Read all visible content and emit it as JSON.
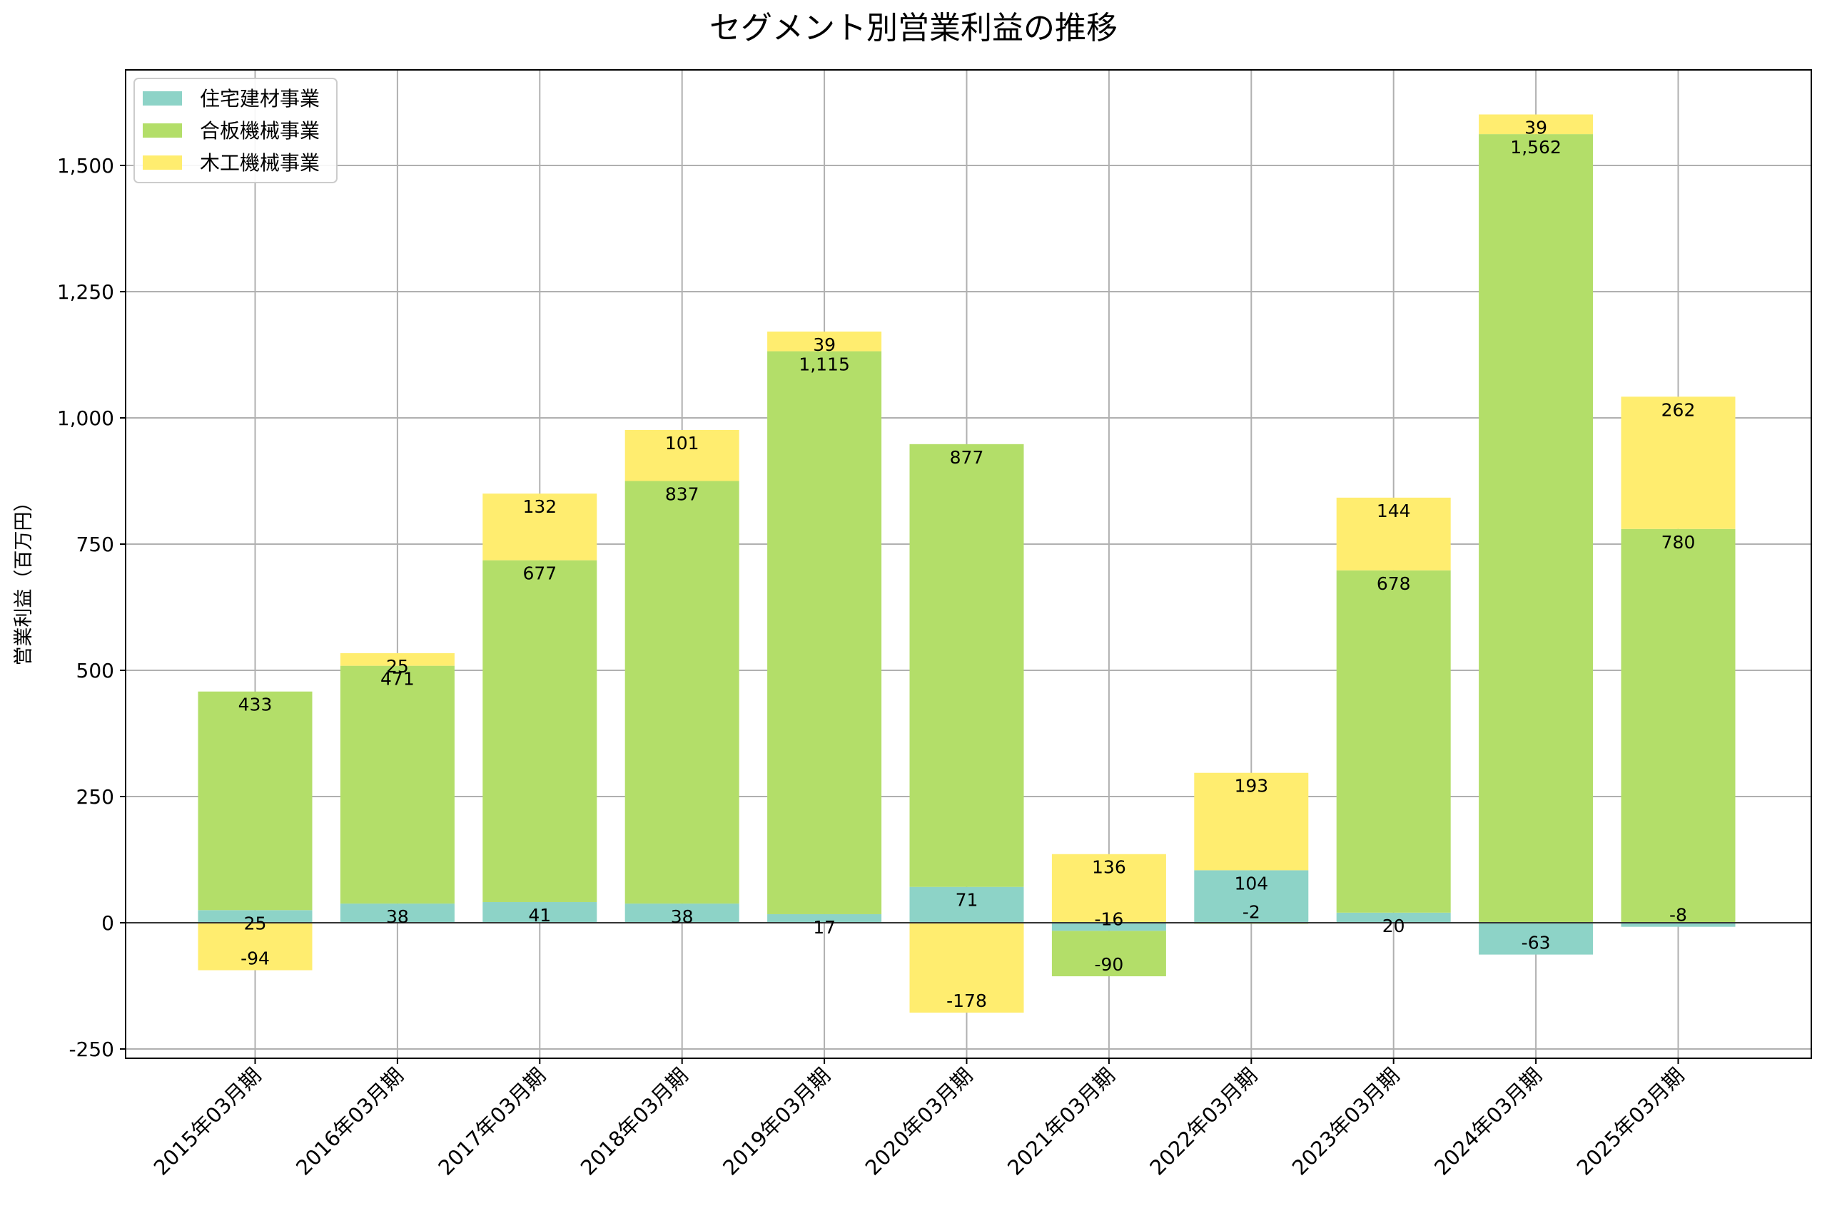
{
  "chart_data": {
    "type": "bar",
    "stacked": true,
    "title": "セグメント別営業利益の推移",
    "xlabel": "",
    "ylabel": "営業利益（百万円）",
    "ylim": [
      -270,
      1700
    ],
    "yticks": [
      -250,
      0,
      250,
      500,
      750,
      1000,
      1250,
      1500
    ],
    "ytick_labels": [
      "-250",
      "0",
      "250",
      "500",
      "750",
      "1,000",
      "1,250",
      "1,500"
    ],
    "grid": true,
    "legend_position": "top-left",
    "categories": [
      "2015年03月期",
      "2016年03月期",
      "2017年03月期",
      "2018年03月期",
      "2019年03月期",
      "2020年03月期",
      "2021年03月期",
      "2022年03月期",
      "2023年03月期",
      "2024年03月期",
      "2025年03月期"
    ],
    "series": [
      {
        "name": "住宅建材事業",
        "color": "#8dd3c7",
        "values": [
          25,
          38,
          41,
          38,
          17,
          71,
          -16,
          104,
          20,
          -63,
          -8
        ]
      },
      {
        "name": "合板機械事業",
        "color": "#b3de69",
        "values": [
          433,
          471,
          677,
          837,
          1115,
          877,
          -90,
          -2,
          678,
          1562,
          780
        ]
      },
      {
        "name": "木工機械事業",
        "color": "#ffed6f",
        "values": [
          -94,
          25,
          132,
          101,
          39,
          -178,
          136,
          193,
          144,
          39,
          262
        ]
      }
    ]
  }
}
